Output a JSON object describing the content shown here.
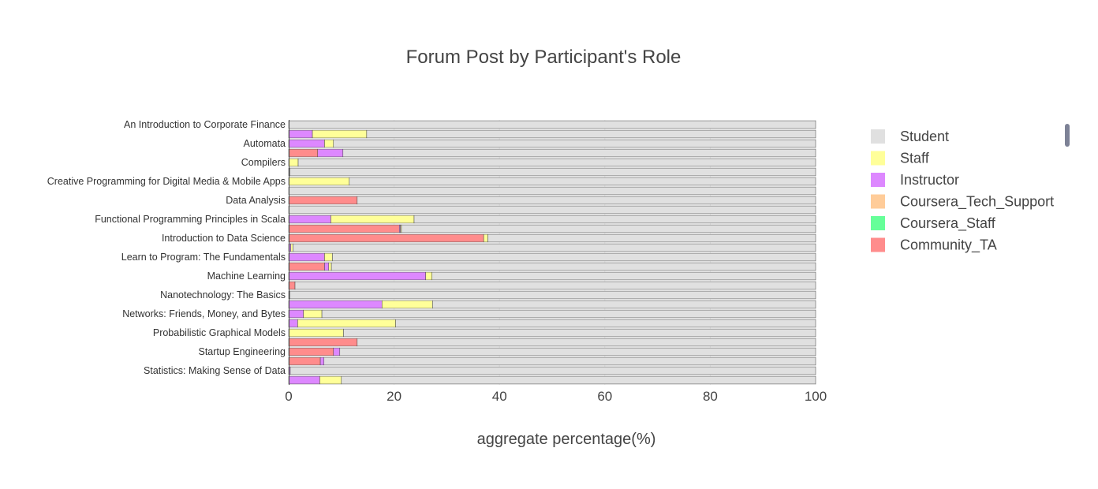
{
  "chart_data": {
    "type": "bar",
    "orientation": "horizontal",
    "barmode": "stack",
    "title": "Forum Post by Participant's Role",
    "xlabel": "aggregate percentage(%)",
    "xlim": [
      0,
      100
    ],
    "xticks": [
      0,
      20,
      40,
      60,
      80,
      100
    ],
    "legend_position": "right",
    "categories": [
      "An Introduction to Corporate Finance",
      "",
      "Automata",
      "",
      "Compilers",
      "",
      "Creative Programming for Digital Media & Mobile Apps",
      "",
      "Data Analysis",
      "",
      "Functional Programming Principles in Scala",
      "",
      "Introduction to Data Science",
      "",
      "Learn to Program: The Fundamentals",
      "",
      "Machine Learning",
      "",
      "Nanotechnology: The Basics",
      "",
      "Networks: Friends, Money, and Bytes",
      "",
      "Probabilistic Graphical Models",
      "",
      "Startup Engineering",
      "",
      "Statistics: Making Sense of Data",
      ""
    ],
    "series": [
      {
        "name": "Community_TA",
        "color": "#ff8c8c",
        "values": [
          0,
          0,
          0,
          5.5,
          0,
          0,
          0,
          0,
          13,
          0,
          0,
          21,
          37,
          0,
          0,
          6.8,
          0,
          1.2,
          0,
          0,
          0,
          0,
          0,
          13,
          8.5,
          6,
          0,
          0
        ]
      },
      {
        "name": "Coursera_Staff",
        "color": "#66ff99",
        "values": [
          0,
          0,
          0,
          0,
          0,
          0,
          0,
          0,
          0,
          0,
          0,
          0,
          0,
          0,
          0,
          0,
          0,
          0,
          0,
          0,
          0,
          0,
          0,
          0,
          0,
          0,
          0,
          0
        ]
      },
      {
        "name": "Coursera_Tech_Support",
        "color": "#ffcc99",
        "values": [
          0,
          0,
          0,
          0,
          0,
          0,
          0,
          0,
          0,
          0,
          0,
          0,
          0,
          0,
          0,
          0,
          0,
          0,
          0,
          0,
          0,
          0,
          0,
          0,
          0,
          0,
          0,
          0
        ]
      },
      {
        "name": "Instructor",
        "color": "#dd88ff",
        "values": [
          0,
          4.5,
          6.8,
          4.8,
          0,
          0.2,
          0,
          0,
          0,
          0,
          8,
          0.2,
          0,
          0.4,
          6.8,
          0.8,
          26,
          0,
          0.2,
          17.7,
          2.8,
          1.7,
          0,
          0,
          1.2,
          0.7,
          0.3,
          5.9
        ]
      },
      {
        "name": "Staff",
        "color": "#ffff99",
        "values": [
          0,
          10.3,
          1.7,
          0,
          1.8,
          0,
          11.5,
          0,
          0,
          0,
          15.8,
          0.2,
          0.8,
          0.4,
          1.5,
          0.5,
          1.2,
          0,
          0,
          9.6,
          3.5,
          18.6,
          10.4,
          0,
          0,
          0,
          0,
          4.1
        ]
      },
      {
        "name": "Student",
        "color": "#e0e0e0",
        "values": [
          100,
          85.2,
          91.5,
          89.7,
          98.2,
          99.8,
          88.5,
          100,
          87,
          100,
          76.2,
          78.6,
          62.2,
          99.2,
          91.7,
          91.9,
          72.8,
          98.8,
          99.8,
          72.7,
          93.7,
          79.7,
          89.6,
          87,
          90.3,
          93.3,
          99.7,
          90
        ]
      }
    ],
    "legend_order": [
      "Student",
      "Staff",
      "Instructor",
      "Coursera_Tech_Support",
      "Coursera_Staff",
      "Community_TA"
    ]
  }
}
